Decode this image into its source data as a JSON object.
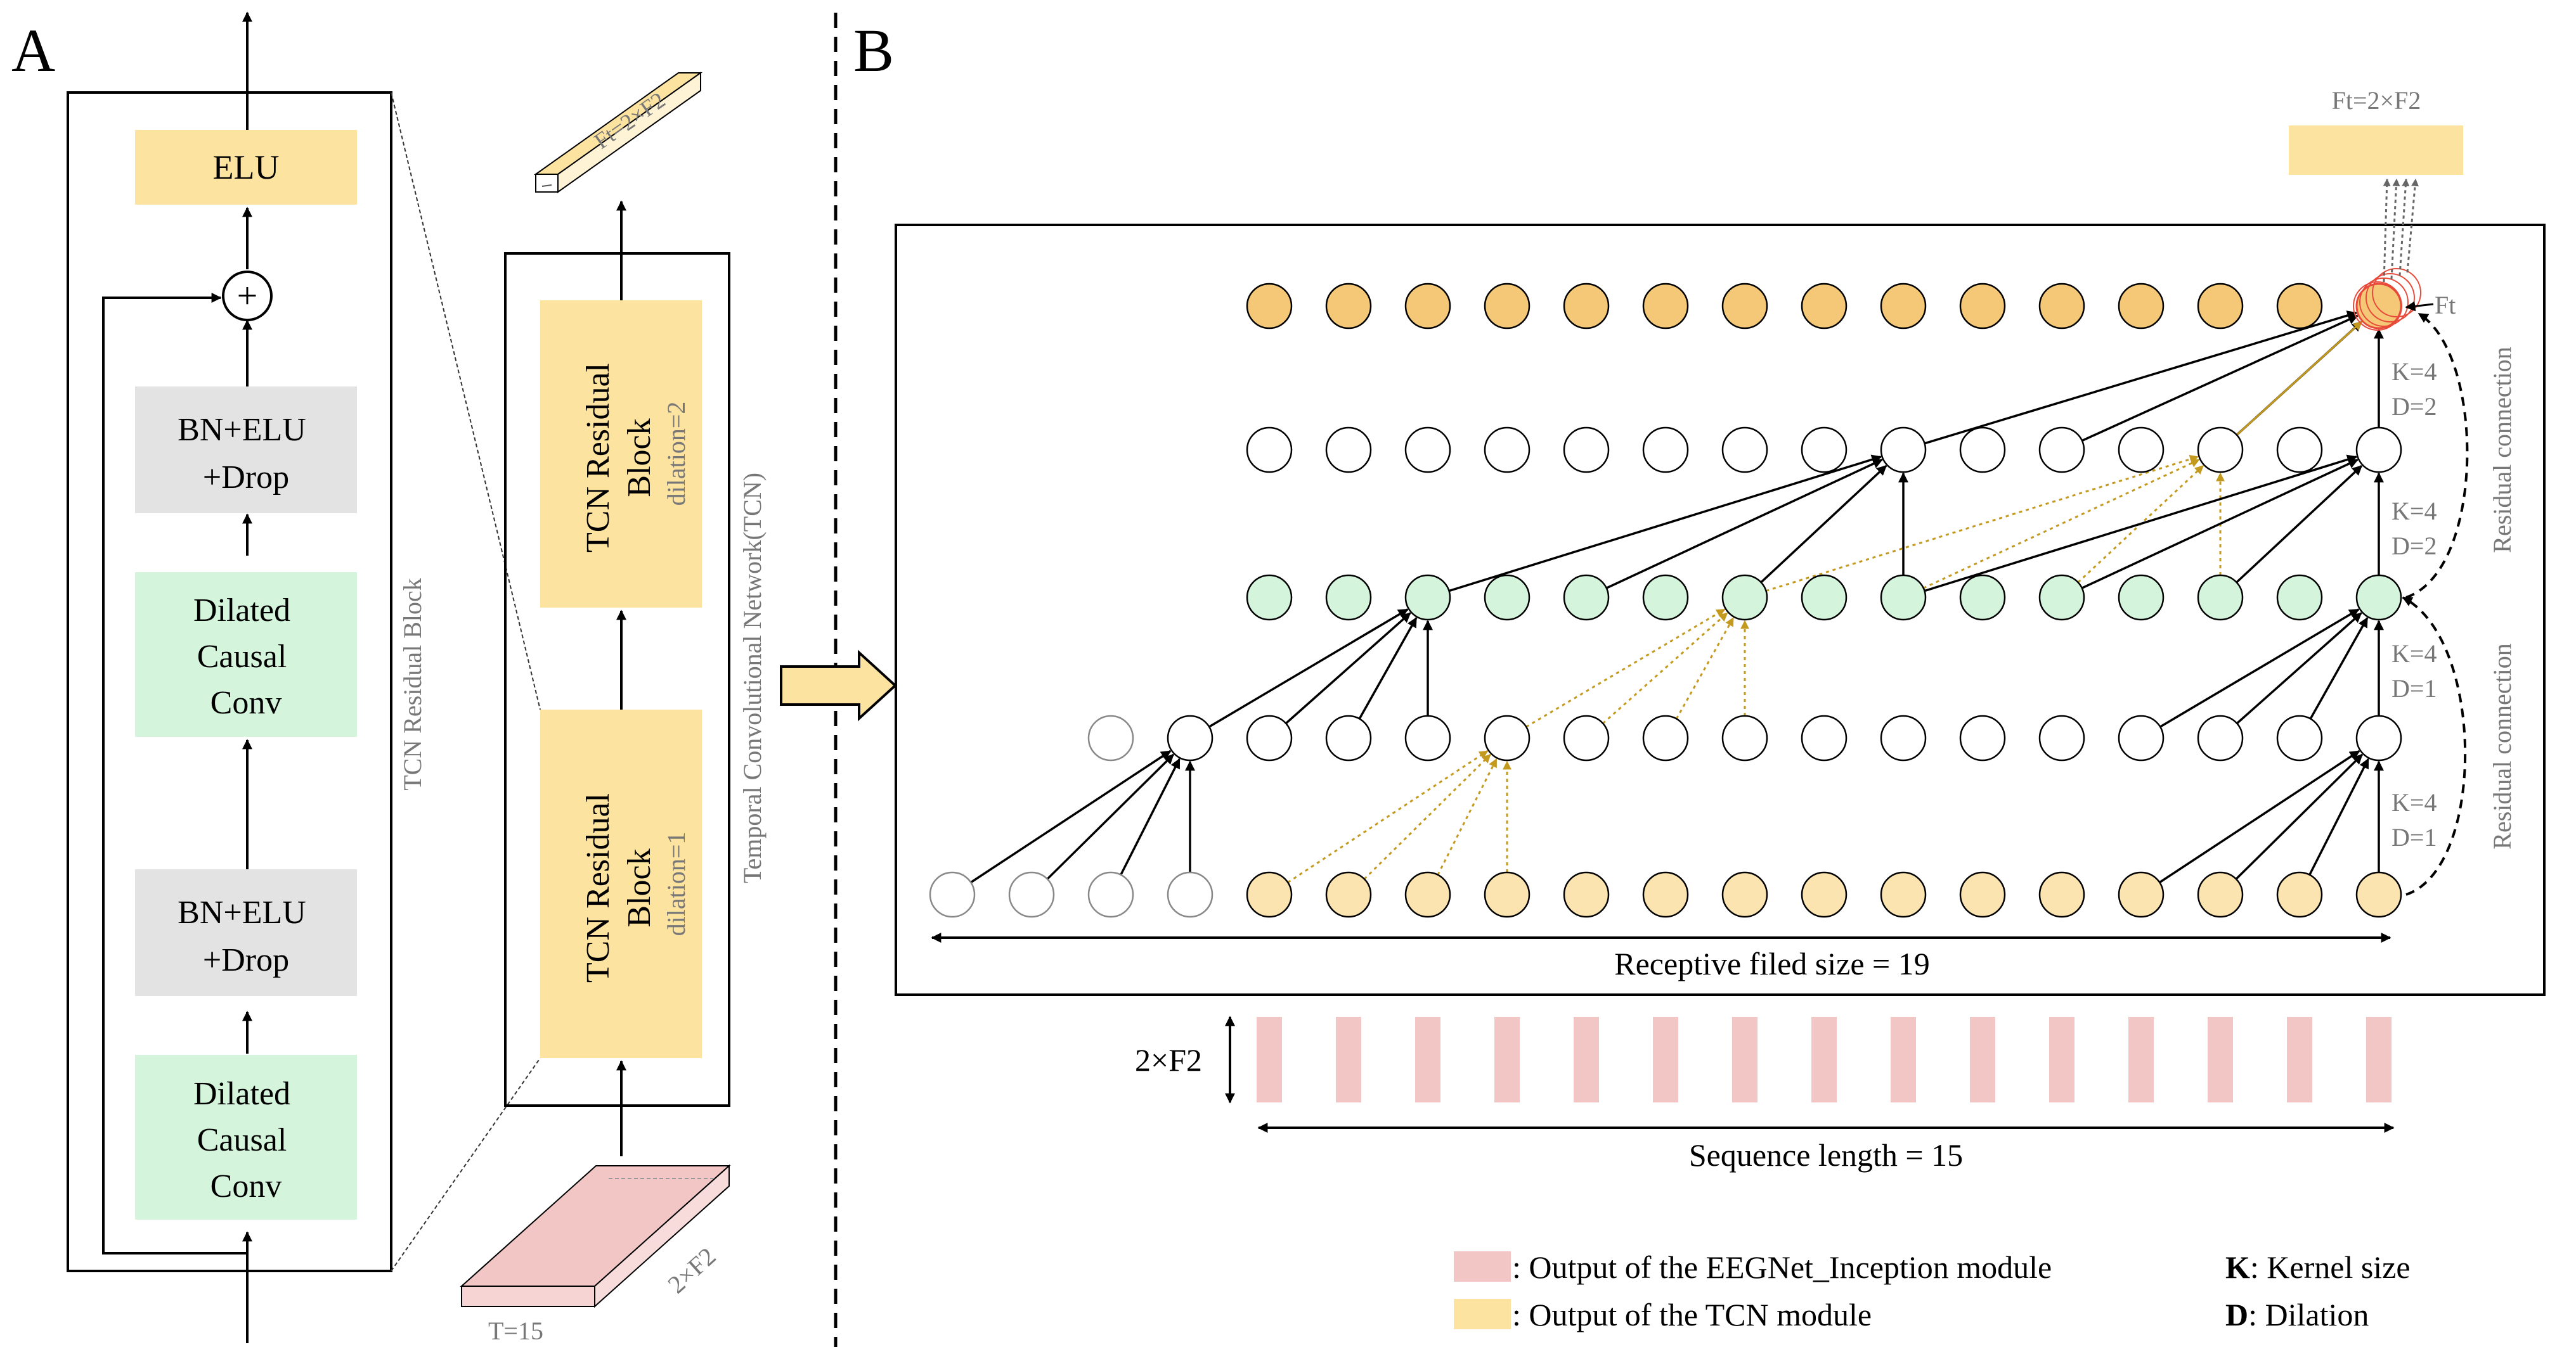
{
  "panels": {
    "a_label": "A",
    "b_label": "B"
  },
  "panel_a": {
    "residual_block": {
      "title": "TCN Residual Block",
      "elu": "ELU",
      "add_symbol": "+",
      "bn_top": [
        "BN+ELU",
        "+Drop"
      ],
      "conv_top": [
        "Dilated",
        "Causal",
        "Conv"
      ],
      "bn_bottom": [
        "BN+ELU",
        "+Drop"
      ],
      "conv_bottom": [
        "Dilated",
        "Causal",
        "Conv"
      ]
    },
    "tcn": {
      "title": "Temporal Convolutional Network(TCN)",
      "block2": {
        "line1": "TCN Residual",
        "line2": "Block",
        "dilation": "dilation=2"
      },
      "block1": {
        "line1": "TCN Residual",
        "line2": "Block",
        "dilation": "dilation=1"
      },
      "output_label": "Ft=2×F2",
      "input_t_label": "T=15",
      "input_f_label": "2×F2"
    }
  },
  "panel_b": {
    "top_output_label": "Ft=2×F2",
    "ft_label": "Ft",
    "layers": [
      {
        "k": "K=4",
        "d": "D=2"
      },
      {
        "k": "K=4",
        "d": "D=2"
      },
      {
        "k": "K=4",
        "d": "D=1"
      },
      {
        "k": "K=4",
        "d": "D=1"
      }
    ],
    "residual_labels": [
      "Residual connection",
      "Residual connection"
    ],
    "receptive_field": "Receptive filed size = 19",
    "feature_dim": "2×F2",
    "sequence_length": "Sequence length = 15"
  },
  "legend": {
    "eegnet": ": Output of the EEGNet_Inception module",
    "tcn": ": Output of the TCN module",
    "kernel_key": "K",
    "kernel_text": ": Kernel size",
    "dilation_key": "D",
    "dilation_text": ": Dilation"
  },
  "colors": {
    "orange": "#F5C878",
    "yellow": "#FDE3A0",
    "light_yellow": "#FCE4B0",
    "green": "#D4F5DC",
    "gray_box": "#E3E3E3",
    "pink": "#F3C6C6",
    "gold_arrow": "#C49A1E",
    "red_ring": "#E84A3A"
  }
}
